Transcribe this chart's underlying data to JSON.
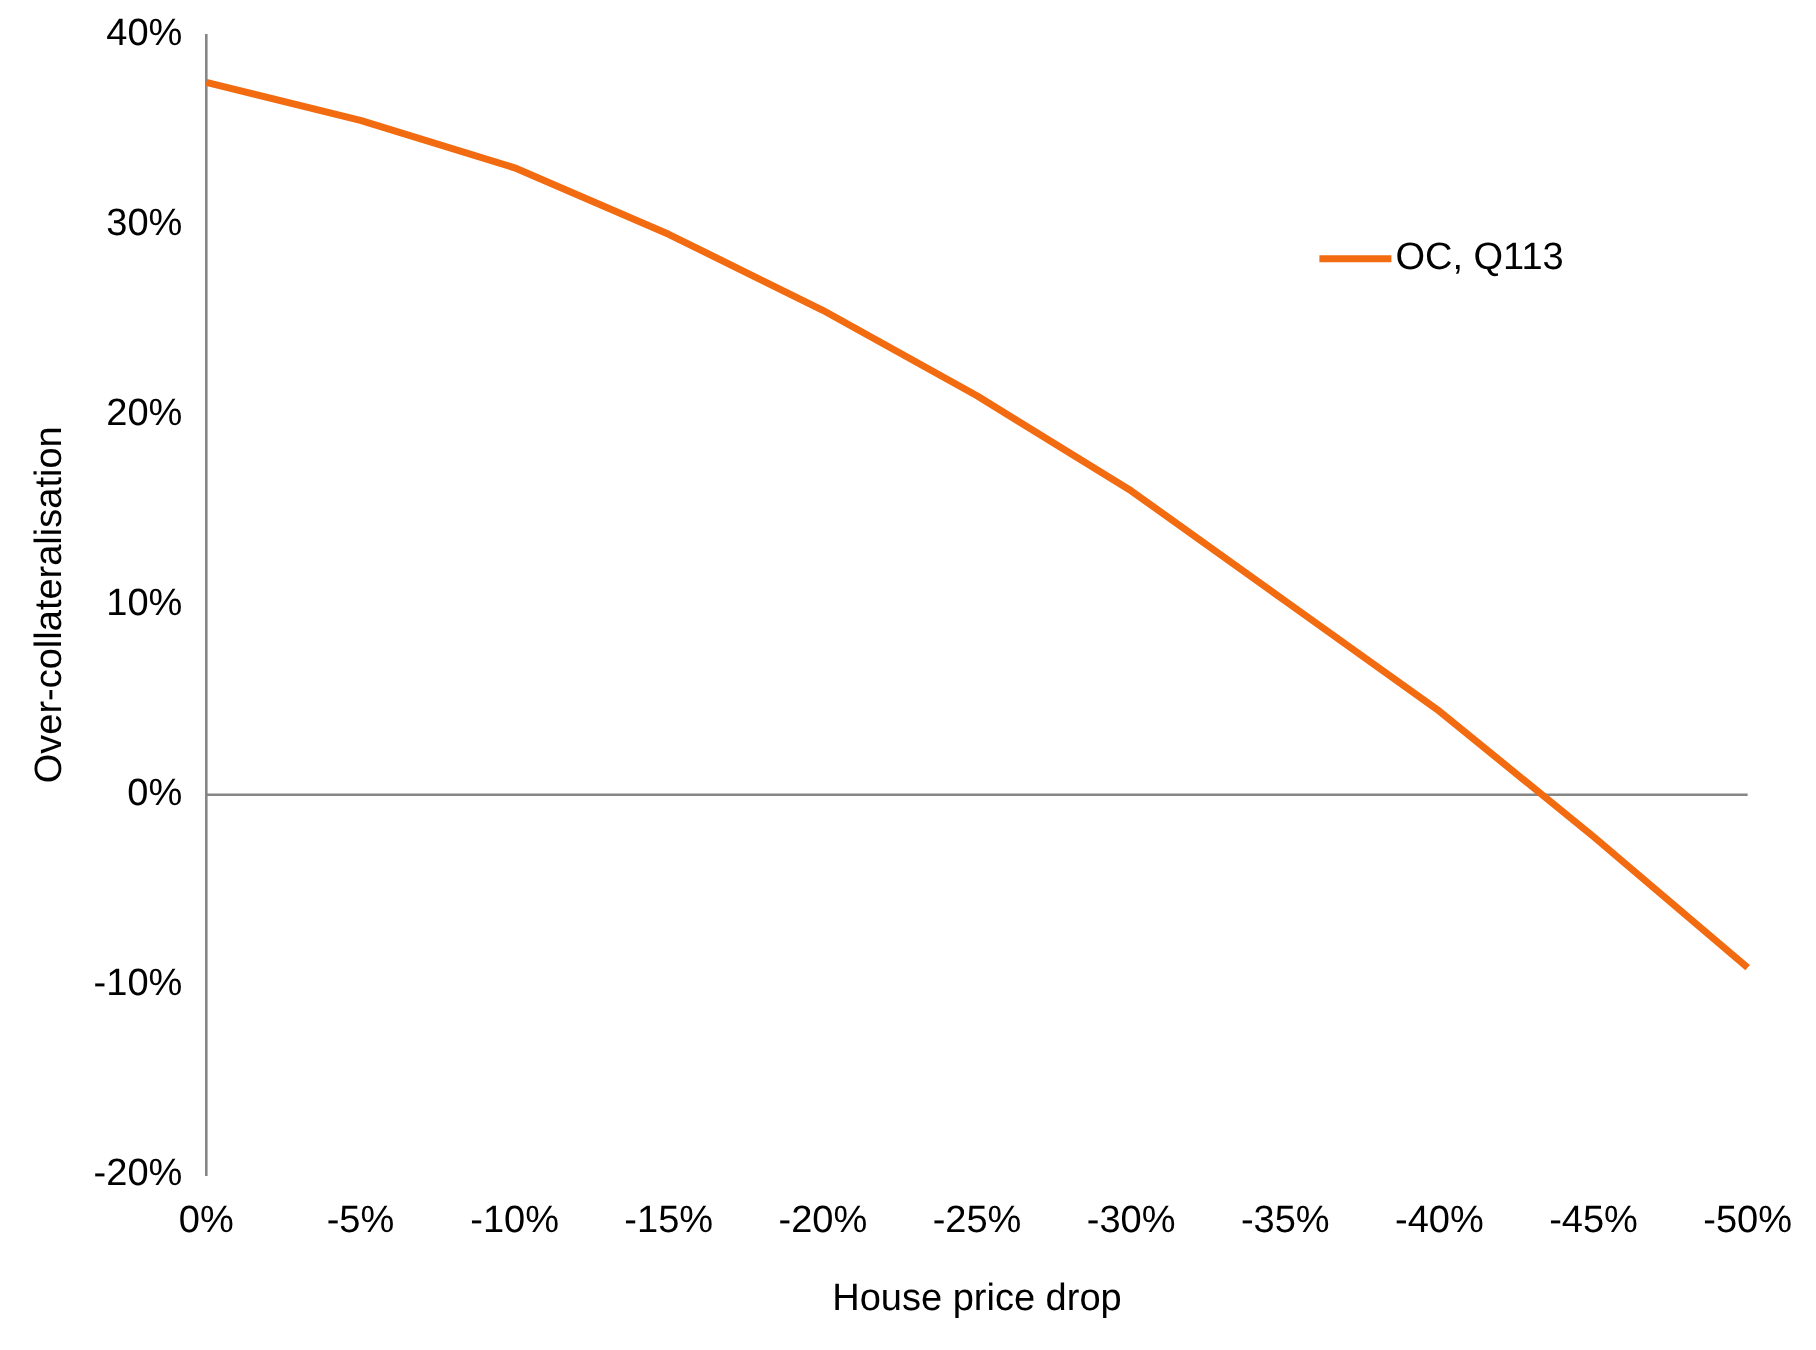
{
  "chart_data": {
    "type": "line",
    "xlabel": "House price drop",
    "ylabel": "Over-collateralisation",
    "categories": [
      "0%",
      "-5%",
      "-10%",
      "-15%",
      "-20%",
      "-25%",
      "-30%",
      "-35%",
      "-40%",
      "-45%",
      "-50%"
    ],
    "series": [
      {
        "name": "OC, Q113",
        "color": "#f26b10",
        "values": [
          37.5,
          35.5,
          33,
          29.5,
          25.5,
          21,
          16,
          10.2,
          4.4,
          -2.2,
          -9.1
        ]
      }
    ],
    "ylim": [
      -20,
      40
    ],
    "yticks": [
      {
        "value": -20,
        "label": "-20%"
      },
      {
        "value": -10,
        "label": "-10%"
      },
      {
        "value": 0,
        "label": "0%"
      },
      {
        "value": 10,
        "label": "10%"
      },
      {
        "value": 20,
        "label": "20%"
      },
      {
        "value": 30,
        "label": "30%"
      },
      {
        "value": 40,
        "label": "40%"
      }
    ],
    "ref_lines": [
      {
        "axis": "y",
        "value": 0,
        "color": "#868686"
      }
    ],
    "grid": false,
    "legend": "top right",
    "marker": "none",
    "line_style": "solid"
  }
}
